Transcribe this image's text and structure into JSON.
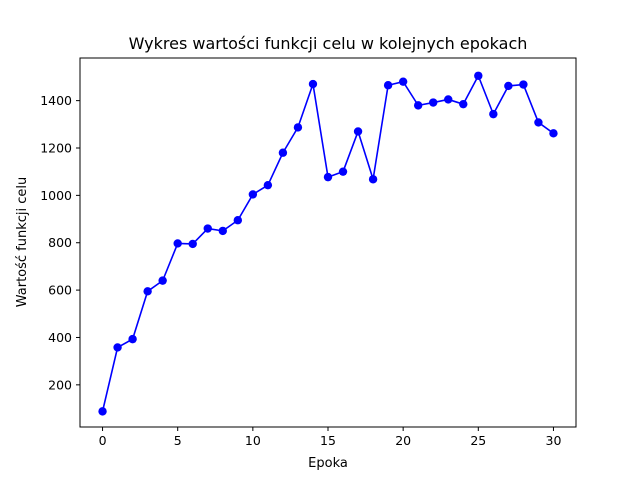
{
  "chart_data": {
    "type": "line",
    "title": "Wykres wartości funkcji celu w kolejnych epokach",
    "xlabel": "Epoka",
    "ylabel": "Wartość funkcji celu",
    "xlim": [
      -1.5,
      31.5
    ],
    "ylim": [
      22,
      1580
    ],
    "xticks": [
      0,
      5,
      10,
      15,
      20,
      25,
      30
    ],
    "yticks": [
      200,
      400,
      600,
      800,
      1000,
      1200,
      1400
    ],
    "grid": false,
    "color": "#0000ff",
    "marker": "circle",
    "series": [
      {
        "x": [
          0,
          1,
          2,
          3,
          4,
          5,
          6,
          7,
          8,
          9,
          10,
          11,
          12,
          13,
          14,
          15,
          16,
          17,
          18,
          19,
          20,
          21,
          22,
          23,
          24,
          25,
          26,
          27,
          28,
          29,
          30
        ],
        "values": [
          88,
          358,
          393,
          595,
          640,
          797,
          795,
          860,
          850,
          895,
          1004,
          1043,
          1180,
          1287,
          1470,
          1077,
          1100,
          1270,
          1068,
          1465,
          1480,
          1380,
          1392,
          1405,
          1385,
          1505,
          1343,
          1462,
          1468,
          1308,
          1262
        ]
      }
    ]
  }
}
